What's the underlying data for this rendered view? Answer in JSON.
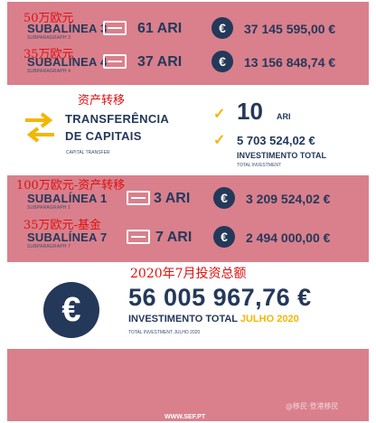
{
  "rows_top": [
    {
      "title": "SUBALÍNEA 3",
      "small": "SUBPARAGRAPH 3",
      "ari": "61 ARI",
      "amount": "37 145 595,00 €",
      "cn": "50万欧元"
    },
    {
      "title": "SUBALÍNEA 4",
      "small": "SUBPARAGRAPH 4",
      "ari": "37 ARI",
      "amount": "13 156 848,74 €",
      "cn": "35万欧元"
    }
  ],
  "transfer": {
    "cn": "资产转移",
    "title_line1": "TRANSFERÊNCIA",
    "title_line2": "DE CAPITAIS",
    "small": "CAPITAL TRANSFER",
    "ari_number": "10",
    "ari_label": "ARI",
    "amount": "5 703 524,02 €",
    "label": "INVESTIMENTO TOTAL",
    "label_small": "TOTAL INVESTMENT"
  },
  "rows_bottom": [
    {
      "title": "SUBALÍNEA 1",
      "small": "SUBPARAGRAPH 1",
      "ari": "3 ARI",
      "amount": "3 209 524,02 €",
      "cn": "100万欧元-资产转移"
    },
    {
      "title": "SUBALÍNEA 7",
      "small": "SUBPARAGRAPH 7",
      "ari": "7 ARI",
      "amount": "2 494 000,00 €",
      "cn": "35万欧元-基金"
    }
  ],
  "total": {
    "cn": "2020年7月投资总额",
    "amount": "56 005 967,76 €",
    "label_main": "INVESTIMENTO TOTAL",
    "label_highlight": "JULHO 2020",
    "small": "TOTAL INVESTMENT JULHO 2020"
  },
  "footer": {
    "url": "WWW.SEF.PT",
    "watermark": "@移民·登港移民"
  },
  "icons": {
    "card": "credit-card-icon",
    "euro": "euro-icon",
    "check": "check-icon",
    "arrows": "transfer-arrows-icon"
  },
  "colors": {
    "band": "#d9808c",
    "navy": "#24385a",
    "yellow": "#f2b705",
    "annotation": "#e01010"
  }
}
